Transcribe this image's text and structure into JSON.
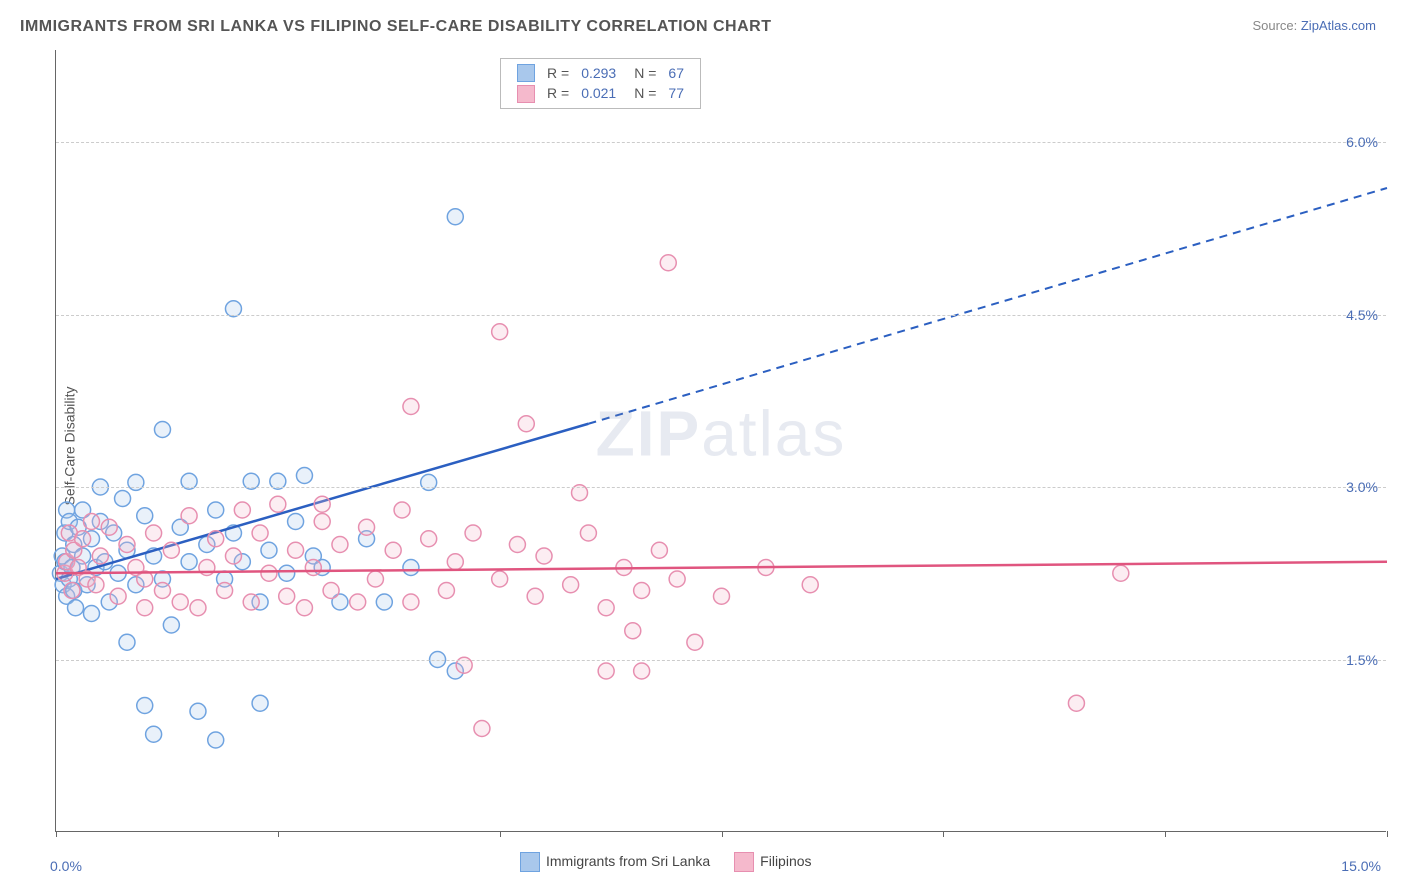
{
  "title": "IMMIGRANTS FROM SRI LANKA VS FILIPINO SELF-CARE DISABILITY CORRELATION CHART",
  "source_label": "Source: ",
  "source_link": "ZipAtlas.com",
  "ylabel": "Self-Care Disability",
  "watermark_zip": "ZIP",
  "watermark_atlas": "atlas",
  "chart": {
    "type": "scatter",
    "xlim": [
      0,
      15
    ],
    "ylim": [
      0,
      6.8
    ],
    "xticks": [
      0,
      2.5,
      5,
      7.5,
      10,
      12.5,
      15
    ],
    "xticks_labeled": {
      "0": "0.0%",
      "15": "15.0%"
    },
    "yticks": [
      1.5,
      3.0,
      4.5,
      6.0
    ],
    "ytick_labels": [
      "1.5%",
      "3.0%",
      "4.5%",
      "6.0%"
    ],
    "grid_color": "#cccccc",
    "background": "#ffffff",
    "axis_color": "#666666",
    "tick_label_color": "#4a6db5",
    "marker_radius": 8,
    "marker_stroke_width": 1.5,
    "marker_fill_opacity": 0.25,
    "series": [
      {
        "name": "Immigrants from Sri Lanka",
        "color_stroke": "#6fa3e0",
        "color_fill": "#a9c8ec",
        "line_color": "#2b5fc1",
        "R": "0.293",
        "N": "67",
        "trend": {
          "x0": 0,
          "y0": 2.2,
          "x1_solid": 6.0,
          "y1_solid": 3.55,
          "x1": 15,
          "y1": 5.6,
          "dash_after_solid": true
        },
        "points": [
          [
            0.05,
            2.25
          ],
          [
            0.07,
            2.4
          ],
          [
            0.08,
            2.15
          ],
          [
            0.1,
            2.35
          ],
          [
            0.1,
            2.6
          ],
          [
            0.12,
            2.05
          ],
          [
            0.12,
            2.8
          ],
          [
            0.15,
            2.7
          ],
          [
            0.15,
            2.2
          ],
          [
            0.18,
            2.3
          ],
          [
            0.2,
            2.5
          ],
          [
            0.2,
            2.1
          ],
          [
            0.22,
            1.95
          ],
          [
            0.25,
            2.65
          ],
          [
            0.3,
            2.8
          ],
          [
            0.3,
            2.4
          ],
          [
            0.35,
            2.15
          ],
          [
            0.4,
            2.55
          ],
          [
            0.4,
            1.9
          ],
          [
            0.45,
            2.3
          ],
          [
            0.5,
            2.7
          ],
          [
            0.5,
            3.0
          ],
          [
            0.55,
            2.35
          ],
          [
            0.6,
            2.0
          ],
          [
            0.65,
            2.6
          ],
          [
            0.7,
            2.25
          ],
          [
            0.75,
            2.9
          ],
          [
            0.8,
            2.45
          ],
          [
            0.8,
            1.65
          ],
          [
            0.9,
            2.15
          ],
          [
            0.9,
            3.04
          ],
          [
            1.0,
            2.75
          ],
          [
            1.0,
            1.1
          ],
          [
            1.1,
            2.4
          ],
          [
            1.1,
            0.85
          ],
          [
            1.2,
            2.2
          ],
          [
            1.2,
            3.5
          ],
          [
            1.3,
            1.8
          ],
          [
            1.4,
            2.65
          ],
          [
            1.5,
            2.35
          ],
          [
            1.5,
            3.05
          ],
          [
            1.6,
            1.05
          ],
          [
            1.7,
            2.5
          ],
          [
            1.8,
            2.8
          ],
          [
            1.8,
            0.8
          ],
          [
            1.9,
            2.2
          ],
          [
            2.0,
            2.6
          ],
          [
            2.0,
            4.55
          ],
          [
            2.1,
            2.35
          ],
          [
            2.2,
            3.05
          ],
          [
            2.3,
            2.0
          ],
          [
            2.3,
            1.12
          ],
          [
            2.4,
            2.45
          ],
          [
            2.5,
            3.05
          ],
          [
            2.6,
            2.25
          ],
          [
            2.7,
            2.7
          ],
          [
            2.8,
            3.1
          ],
          [
            2.9,
            2.4
          ],
          [
            3.0,
            2.3
          ],
          [
            3.2,
            2.0
          ],
          [
            3.5,
            2.55
          ],
          [
            3.7,
            2.0
          ],
          [
            4.0,
            2.3
          ],
          [
            4.2,
            3.04
          ],
          [
            4.3,
            1.5
          ],
          [
            4.5,
            5.35
          ],
          [
            4.5,
            1.4
          ]
        ]
      },
      {
        "name": "Filipinos",
        "color_stroke": "#e78fb0",
        "color_fill": "#f5b9cc",
        "line_color": "#e0557f",
        "R": "0.021",
        "N": "77",
        "trend": {
          "x0": 0,
          "y0": 2.25,
          "x1_solid": 15,
          "y1_solid": 2.35,
          "x1": 15,
          "y1": 2.35,
          "dash_after_solid": false
        },
        "points": [
          [
            0.1,
            2.25
          ],
          [
            0.12,
            2.35
          ],
          [
            0.15,
            2.6
          ],
          [
            0.18,
            2.1
          ],
          [
            0.2,
            2.45
          ],
          [
            0.25,
            2.3
          ],
          [
            0.3,
            2.55
          ],
          [
            0.35,
            2.2
          ],
          [
            0.4,
            2.7
          ],
          [
            0.45,
            2.15
          ],
          [
            0.5,
            2.4
          ],
          [
            0.6,
            2.65
          ],
          [
            0.7,
            2.05
          ],
          [
            0.8,
            2.5
          ],
          [
            0.9,
            2.3
          ],
          [
            1.0,
            2.2
          ],
          [
            1.0,
            1.95
          ],
          [
            1.1,
            2.6
          ],
          [
            1.2,
            2.1
          ],
          [
            1.3,
            2.45
          ],
          [
            1.4,
            2.0
          ],
          [
            1.5,
            2.75
          ],
          [
            1.6,
            1.95
          ],
          [
            1.7,
            2.3
          ],
          [
            1.8,
            2.55
          ],
          [
            1.9,
            2.1
          ],
          [
            2.0,
            2.4
          ],
          [
            2.1,
            2.8
          ],
          [
            2.2,
            2.0
          ],
          [
            2.3,
            2.6
          ],
          [
            2.4,
            2.25
          ],
          [
            2.5,
            2.85
          ],
          [
            2.6,
            2.05
          ],
          [
            2.7,
            2.45
          ],
          [
            2.8,
            1.95
          ],
          [
            2.9,
            2.3
          ],
          [
            3.0,
            2.7
          ],
          [
            3.0,
            2.85
          ],
          [
            3.1,
            2.1
          ],
          [
            3.2,
            2.5
          ],
          [
            3.4,
            2.0
          ],
          [
            3.5,
            2.65
          ],
          [
            3.6,
            2.2
          ],
          [
            3.8,
            2.45
          ],
          [
            3.9,
            2.8
          ],
          [
            4.0,
            2.0
          ],
          [
            4.0,
            3.7
          ],
          [
            4.2,
            2.55
          ],
          [
            4.4,
            2.1
          ],
          [
            4.5,
            2.35
          ],
          [
            4.6,
            1.45
          ],
          [
            4.7,
            2.6
          ],
          [
            4.8,
            0.9
          ],
          [
            5.0,
            2.2
          ],
          [
            5.0,
            4.35
          ],
          [
            5.2,
            2.5
          ],
          [
            5.3,
            3.55
          ],
          [
            5.4,
            2.05
          ],
          [
            5.5,
            2.4
          ],
          [
            5.8,
            2.15
          ],
          [
            5.9,
            2.95
          ],
          [
            6.0,
            2.6
          ],
          [
            6.2,
            1.95
          ],
          [
            6.2,
            1.4
          ],
          [
            6.4,
            2.3
          ],
          [
            6.5,
            1.75
          ],
          [
            6.6,
            2.1
          ],
          [
            6.6,
            1.4
          ],
          [
            6.8,
            2.45
          ],
          [
            6.9,
            4.95
          ],
          [
            7.0,
            2.2
          ],
          [
            7.2,
            1.65
          ],
          [
            7.5,
            2.05
          ],
          [
            8.0,
            2.3
          ],
          [
            8.5,
            2.15
          ],
          [
            11.5,
            1.12
          ],
          [
            12.0,
            2.25
          ]
        ]
      }
    ],
    "legend_top": {
      "R_label": "R =",
      "N_label": "N ="
    },
    "legend_bottom": {
      "items": [
        "Immigrants from Sri Lanka",
        "Filipinos"
      ]
    }
  }
}
